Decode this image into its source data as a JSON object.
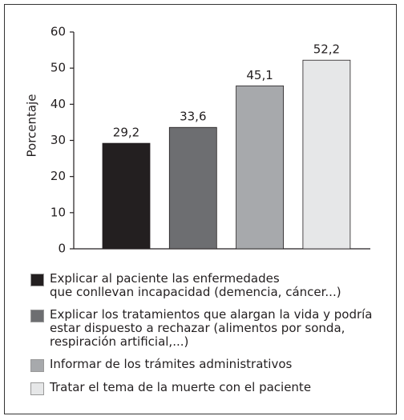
{
  "chart_data": {
    "type": "bar",
    "ylabel": "Porcentaje",
    "categories": [
      "Explicar al paciente las enfermedades\nque conllevan incapacidad (demencia, cáncer...)",
      "Explicar los tratamientos que alargan la vida y podría\nestar dispuesto a rechazar (alimentos por sonda,\nrespiración artificial,...)",
      "Informar de los trámites administrativos",
      "Tratar el tema de la muerte con el paciente"
    ],
    "values": [
      29.2,
      33.6,
      45.1,
      52.2
    ],
    "value_labels": [
      "29,2",
      "33,6",
      "45,1",
      "52,2"
    ],
    "colors": [
      "#231f20",
      "#6d6e71",
      "#a7a9ac",
      "#e6e7e8"
    ],
    "ylim": [
      0,
      60
    ],
    "yticks": [
      0,
      10,
      20,
      30,
      40,
      50,
      60
    ]
  }
}
